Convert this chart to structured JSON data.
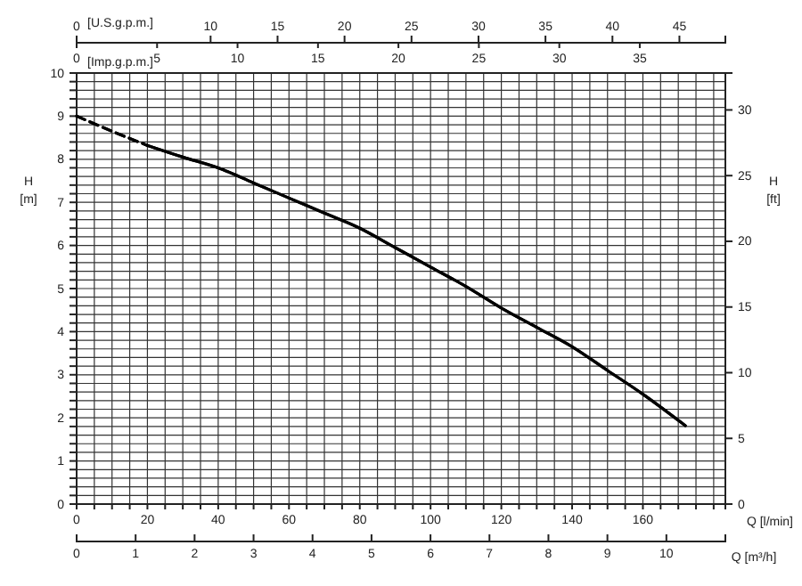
{
  "chart_data": [
    {
      "type": "line",
      "xlabel": "Q [l/min]",
      "ylabel": "H [m]",
      "y2label": "H [ft]",
      "x2label": "Q [m³/h]",
      "xlim": [
        0,
        183.3
      ],
      "ylim": [
        0,
        10
      ],
      "y2lim": [
        0,
        32.81
      ],
      "x2lim": [
        0,
        11
      ],
      "xticks": [
        0,
        {
          "value": 5,
          "label": null
        },
        {
          "value": 10,
          "label": null
        },
        {
          "value": 15,
          "label": null
        },
        20,
        {
          "value": 25,
          "label": null
        },
        {
          "value": 30,
          "label": null
        },
        {
          "value": 35,
          "label": null
        },
        40,
        {
          "value": 45,
          "label": null
        },
        {
          "value": 50,
          "label": null
        },
        {
          "value": 55,
          "label": null
        },
        60,
        {
          "value": 65,
          "label": null
        },
        {
          "value": 70,
          "label": null
        },
        {
          "value": 75,
          "label": null
        },
        80,
        {
          "value": 85,
          "label": null
        },
        {
          "value": 90,
          "label": null
        },
        {
          "value": 95,
          "label": null
        },
        100,
        {
          "value": 105,
          "label": null
        },
        {
          "value": 110,
          "label": null
        },
        {
          "value": 115,
          "label": null
        },
        120,
        {
          "value": 125,
          "label": null
        },
        {
          "value": 130,
          "label": null
        },
        {
          "value": 135,
          "label": null
        },
        140,
        {
          "value": 145,
          "label": null
        },
        {
          "value": 150,
          "label": null
        },
        {
          "value": 155,
          "label": null
        },
        160,
        {
          "value": 165,
          "label": null
        },
        {
          "value": 170,
          "label": null
        },
        {
          "value": 175,
          "label": null
        },
        {
          "value": 180,
          "label": null
        }
      ],
      "yticks": [
        0,
        {
          "value": 0.2,
          "label": null
        },
        {
          "value": 0.4,
          "label": null
        },
        {
          "value": 0.6,
          "label": null
        },
        {
          "value": 0.8,
          "label": null
        },
        1,
        {
          "value": 1.2,
          "label": null
        },
        {
          "value": 1.4,
          "label": null
        },
        {
          "value": 1.6,
          "label": null
        },
        {
          "value": 1.8,
          "label": null
        },
        2,
        {
          "value": 2.2,
          "label": null
        },
        {
          "value": 2.4,
          "label": null
        },
        {
          "value": 2.6,
          "label": null
        },
        {
          "value": 2.8,
          "label": null
        },
        3,
        {
          "value": 3.2,
          "label": null
        },
        {
          "value": 3.4,
          "label": null
        },
        {
          "value": 3.6,
          "label": null
        },
        {
          "value": 3.8,
          "label": null
        },
        4,
        {
          "value": 4.2,
          "label": null
        },
        {
          "value": 4.4,
          "label": null
        },
        {
          "value": 4.6,
          "label": null
        },
        {
          "value": 4.8,
          "label": null
        },
        5,
        {
          "value": 5.2,
          "label": null
        },
        {
          "value": 5.4,
          "label": null
        },
        {
          "value": 5.6,
          "label": null
        },
        {
          "value": 5.8,
          "label": null
        },
        6,
        {
          "value": 6.2,
          "label": null
        },
        {
          "value": 6.4,
          "label": null
        },
        {
          "value": 6.6,
          "label": null
        },
        {
          "value": 6.8,
          "label": null
        },
        7,
        {
          "value": 7.2,
          "label": null
        },
        {
          "value": 7.4,
          "label": null
        },
        {
          "value": 7.6,
          "label": null
        },
        {
          "value": 7.8,
          "label": null
        },
        8,
        {
          "value": 8.2,
          "label": null
        },
        {
          "value": 8.4,
          "label": null
        },
        {
          "value": 8.6,
          "label": null
        },
        {
          "value": 8.8,
          "label": null
        },
        9,
        {
          "value": 9.2,
          "label": null
        },
        {
          "value": 9.4,
          "label": null
        },
        {
          "value": 9.6,
          "label": null
        },
        {
          "value": 9.8,
          "label": null
        },
        10
      ],
      "y2ticks": [
        0,
        5,
        10,
        15,
        20,
        25,
        30
      ],
      "x2ticks": [
        0,
        1,
        2,
        3,
        4,
        5,
        6,
        7,
        8,
        9,
        10
      ],
      "grid": true,
      "series": [
        {
          "color": "#000000",
          "line_style": "dashed",
          "x": [
            0,
            10,
            20
          ],
          "values": [
            9.0,
            8.65,
            8.32
          ]
        },
        {
          "color": "#000000",
          "line_style": "solid",
          "x": [
            20,
            30,
            40,
            50,
            60,
            70,
            80,
            90,
            100,
            110,
            120,
            130,
            140,
            150,
            160,
            172
          ],
          "values": [
            8.32,
            8.05,
            7.8,
            7.45,
            7.1,
            6.75,
            6.4,
            5.95,
            5.5,
            5.05,
            4.55,
            4.1,
            3.65,
            3.1,
            2.55,
            1.82
          ]
        }
      ]
    },
    {
      "type": "line",
      "xlabel": "[U.S.g.p.m.]",
      "x2label": "[Imp.g.p.m.]",
      "xlim": [
        0,
        48.43
      ],
      "x2lim": [
        0,
        40.32
      ],
      "ylim": [
        0,
        10
      ],
      "tick_labels": "x",
      "xticks": [
        0,
        10,
        15,
        20,
        25,
        30,
        35,
        40,
        45
      ],
      "x2ticks": [
        0,
        5,
        10,
        15,
        20,
        25,
        30,
        35
      ],
      "series": [
        {
          "color": "#000000",
          "line_style": "dashed",
          "x": [
            0,
            2.64,
            5.28
          ],
          "values": [
            9.0,
            8.65,
            8.32
          ]
        },
        {
          "color": "#000000",
          "line_style": "solid",
          "x": [
            5.28,
            7.93,
            10.57,
            13.21,
            15.85,
            18.49,
            21.14,
            23.78,
            26.42,
            29.06,
            31.7,
            34.35,
            36.99,
            39.63,
            42.27,
            45.44
          ],
          "values": [
            8.32,
            8.05,
            7.8,
            7.45,
            7.1,
            6.75,
            6.4,
            5.95,
            5.5,
            5.05,
            4.55,
            4.1,
            3.65,
            3.1,
            2.55,
            1.82
          ]
        }
      ]
    }
  ]
}
